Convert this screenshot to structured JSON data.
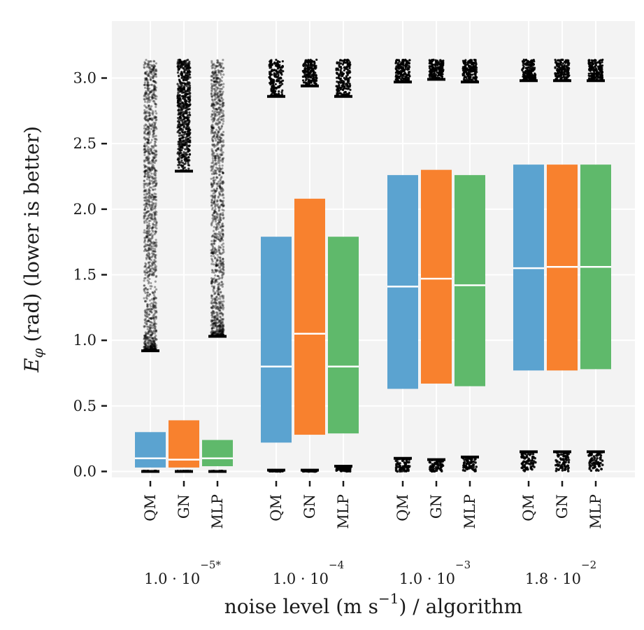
{
  "chart_data": {
    "type": "boxplot",
    "title": "",
    "xlabel": {
      "prefix": "noise level (m s",
      "exp": "−1",
      "suffix": ") / algorithm"
    },
    "ylabel": {
      "sym": "E",
      "sub": "φ",
      "text": " (rad) (lower is better)"
    },
    "ylim": [
      -0.04,
      3.45
    ],
    "yticks": [
      0.0,
      0.5,
      1.0,
      1.5,
      2.0,
      2.5,
      3.0
    ],
    "ytick_labels": [
      "0.0",
      "0.5",
      "1.0",
      "1.5",
      "2.0",
      "2.5",
      "3.0"
    ],
    "grid": true,
    "colors": {
      "QM": "#5ba3d0",
      "GN": "#f8812e",
      "MLP": "#5fb96b",
      "outlier": "#000000",
      "panel": "#f3f3f3",
      "grid": "#ffffff"
    },
    "groups": [
      {
        "label": {
          "mant": "1.0 · 10",
          "exp": "−5*"
        },
        "boxes": [
          {
            "algo": "QM",
            "q1": 0.03,
            "median": 0.1,
            "q3": 0.3,
            "whisker_low": 0.0,
            "whisker_high": 0.92,
            "outliers_low": [
              0.0,
              0.0
            ],
            "outliers_high": [
              0.92,
              3.14
            ]
          },
          {
            "algo": "GN",
            "q1": 0.03,
            "median": 0.09,
            "q3": 0.39,
            "whisker_low": 0.0,
            "whisker_high": 2.29,
            "outliers_low": [
              0.0,
              0.0
            ],
            "outliers_high": [
              2.29,
              3.14
            ]
          },
          {
            "algo": "MLP",
            "q1": 0.04,
            "median": 0.1,
            "q3": 0.24,
            "whisker_low": 0.0,
            "whisker_high": 1.03,
            "outliers_low": [
              0.0,
              0.0
            ],
            "outliers_high": [
              1.03,
              3.14
            ]
          }
        ]
      },
      {
        "label": {
          "mant": "1.0 · 10",
          "exp": "−4"
        },
        "boxes": [
          {
            "algo": "QM",
            "q1": 0.22,
            "median": 0.8,
            "q3": 1.79,
            "whisker_low": 0.01,
            "whisker_high": 2.86,
            "outliers_low": [
              0.0,
              0.01
            ],
            "outliers_high": [
              2.86,
              3.14
            ]
          },
          {
            "algo": "GN",
            "q1": 0.28,
            "median": 1.05,
            "q3": 2.08,
            "whisker_low": 0.01,
            "whisker_high": 2.94,
            "outliers_low": [
              0.0,
              0.01
            ],
            "outliers_high": [
              2.94,
              3.14
            ]
          },
          {
            "algo": "MLP",
            "q1": 0.29,
            "median": 0.8,
            "q3": 1.79,
            "whisker_low": 0.04,
            "whisker_high": 2.86,
            "outliers_low": [
              0.0,
              0.04
            ],
            "outliers_high": [
              2.86,
              3.14
            ]
          }
        ]
      },
      {
        "label": {
          "mant": "1.0 · 10",
          "exp": "−3"
        },
        "boxes": [
          {
            "algo": "QM",
            "q1": 0.63,
            "median": 1.41,
            "q3": 2.26,
            "whisker_low": 0.1,
            "whisker_high": 2.97,
            "outliers_low": [
              0.0,
              0.1
            ],
            "outliers_high": [
              2.97,
              3.14
            ]
          },
          {
            "algo": "GN",
            "q1": 0.67,
            "median": 1.47,
            "q3": 2.3,
            "whisker_low": 0.09,
            "whisker_high": 2.99,
            "outliers_low": [
              0.0,
              0.09
            ],
            "outliers_high": [
              2.99,
              3.14
            ]
          },
          {
            "algo": "MLP",
            "q1": 0.65,
            "median": 1.42,
            "q3": 2.26,
            "whisker_low": 0.11,
            "whisker_high": 2.97,
            "outliers_low": [
              0.0,
              0.11
            ],
            "outliers_high": [
              2.97,
              3.14
            ]
          }
        ]
      },
      {
        "label": {
          "mant": "1.8 · 10",
          "exp": "−2"
        },
        "boxes": [
          {
            "algo": "QM",
            "q1": 0.77,
            "median": 1.55,
            "q3": 2.34,
            "whisker_low": 0.15,
            "whisker_high": 2.98,
            "outliers_low": [
              0.0,
              0.15
            ],
            "outliers_high": [
              2.98,
              3.14
            ]
          },
          {
            "algo": "GN",
            "q1": 0.77,
            "median": 1.56,
            "q3": 2.34,
            "whisker_low": 0.15,
            "whisker_high": 2.98,
            "outliers_low": [
              0.0,
              0.15
            ],
            "outliers_high": [
              2.98,
              3.14
            ]
          },
          {
            "algo": "MLP",
            "q1": 0.78,
            "median": 1.56,
            "q3": 2.34,
            "whisker_low": 0.15,
            "whisker_high": 2.98,
            "outliers_low": [
              0.0,
              0.15
            ],
            "outliers_high": [
              2.98,
              3.14
            ]
          }
        ]
      }
    ]
  }
}
